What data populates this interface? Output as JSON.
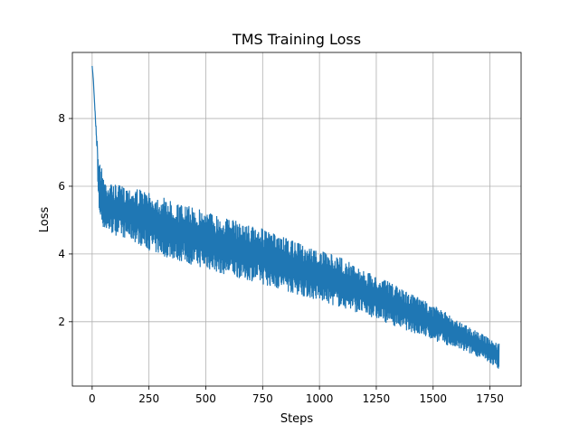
{
  "chart_data": {
    "type": "line",
    "title": "TMS Training Loss",
    "xlabel": "Steps",
    "ylabel": "Loss",
    "xlim": [
      -87,
      1887
    ],
    "ylim": [
      0.1,
      9.95
    ],
    "x_ticks": [
      0,
      250,
      500,
      750,
      1000,
      1250,
      1500,
      1750
    ],
    "y_ticks": [
      2,
      4,
      6,
      8
    ],
    "grid": true,
    "legend": "none",
    "series": [
      {
        "color": "#1f77b4",
        "x_range": [
          0,
          1790
        ],
        "description_points": {
          "steps": [
            0,
            5,
            10,
            15,
            20,
            25,
            30,
            40,
            50,
            60,
            80,
            100,
            150,
            200,
            250,
            300,
            400,
            500,
            600,
            700,
            750,
            800,
            900,
            1000,
            1100,
            1200,
            1300,
            1400,
            1500,
            1600,
            1700,
            1790
          ],
          "upper": [
            9.55,
            9.2,
            8.6,
            8.0,
            7.5,
            7.2,
            6.8,
            6.6,
            6.4,
            6.2,
            6.1,
            6.05,
            6.0,
            5.95,
            5.8,
            5.7,
            5.45,
            5.3,
            5.05,
            4.85,
            4.75,
            4.6,
            4.35,
            4.1,
            3.9,
            3.5,
            3.2,
            2.85,
            2.5,
            2.1,
            1.7,
            1.35
          ],
          "lower": [
            9.55,
            9.0,
            8.3,
            7.4,
            6.5,
            5.8,
            5.2,
            4.9,
            4.75,
            4.65,
            4.6,
            4.55,
            4.45,
            4.3,
            4.1,
            3.95,
            3.75,
            3.55,
            3.35,
            3.2,
            3.1,
            3.0,
            2.8,
            2.6,
            2.4,
            2.2,
            1.95,
            1.7,
            1.45,
            1.2,
            0.95,
            0.6
          ]
        }
      }
    ]
  }
}
